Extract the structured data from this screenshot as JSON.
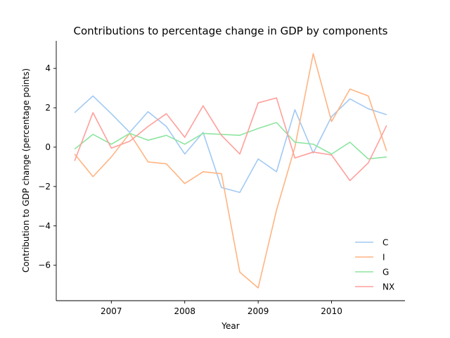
{
  "chart_data": {
    "type": "line",
    "title": "Contributions to percentage change in GDP by components",
    "xlabel": "Year",
    "ylabel": "Contribution to GDP change (percentage points)",
    "x": [
      2006.5,
      2006.75,
      2007.0,
      2007.25,
      2007.5,
      2007.75,
      2008.0,
      2008.25,
      2008.5,
      2008.75,
      2009.0,
      2009.25,
      2009.5,
      2009.75,
      2010.0,
      2010.25,
      2010.5,
      2010.75
    ],
    "xlim": [
      2006.25,
      2011.0
    ],
    "ylim": [
      -7.8,
      5.4
    ],
    "xticks": [
      2007,
      2008,
      2009,
      2010
    ],
    "yticks": [
      -6,
      -4,
      -2,
      0,
      2,
      4
    ],
    "grid": false,
    "legend_position": "lower right",
    "series": [
      {
        "name": "C",
        "color": "#a1c9f4",
        "values": [
          1.75,
          2.6,
          1.7,
          0.75,
          1.8,
          1.05,
          -0.35,
          0.75,
          -2.05,
          -2.3,
          -0.6,
          -1.25,
          1.9,
          -0.3,
          1.55,
          2.45,
          1.95,
          1.65
        ]
      },
      {
        "name": "I",
        "color": "#ffb482",
        "values": [
          -0.35,
          -1.5,
          -0.5,
          0.7,
          -0.75,
          -0.85,
          -1.85,
          -1.25,
          -1.35,
          -6.35,
          -7.15,
          -3.2,
          0.0,
          4.75,
          1.3,
          2.95,
          2.6,
          -0.2
        ]
      },
      {
        "name": "G",
        "color": "#8de5a1",
        "values": [
          -0.1,
          0.65,
          0.15,
          0.7,
          0.35,
          0.6,
          0.15,
          0.7,
          0.65,
          0.6,
          0.95,
          1.25,
          0.25,
          0.15,
          -0.35,
          0.25,
          -0.6,
          -0.5
        ]
      },
      {
        "name": "NX",
        "color": "#ff9f9b",
        "values": [
          -0.7,
          1.75,
          -0.05,
          0.3,
          1.05,
          1.7,
          0.5,
          2.1,
          0.6,
          -0.35,
          2.25,
          2.5,
          -0.55,
          -0.25,
          -0.4,
          -1.7,
          -0.8,
          1.1
        ]
      }
    ]
  }
}
